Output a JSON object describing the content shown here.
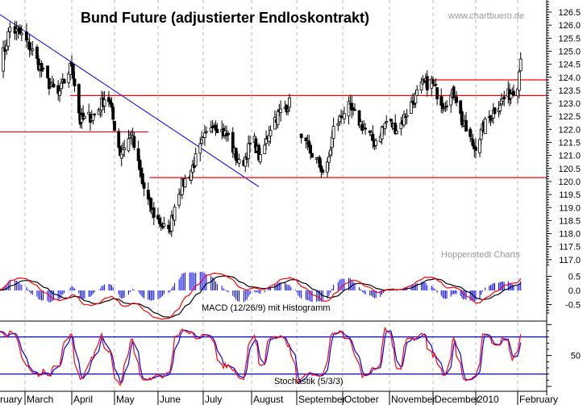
{
  "chart_data": {
    "type": "candlestick",
    "title": "Bund Future (adjustierter Endloskontrakt)",
    "watermark": "www.chartbuero.de",
    "source": "Hoppenstedt Charts",
    "price_axis": {
      "ylim": [
        116.8,
        126.8
      ],
      "ticks": [
        "126.5",
        "126.0",
        "125.5",
        "125.0",
        "124.5",
        "124.0",
        "123.5",
        "123.0",
        "122.5",
        "122.0",
        "121.5",
        "121.0",
        "120.5",
        "120.0",
        "119.5",
        "119.0",
        "118.5",
        "118.0",
        "117.5",
        "117.0"
      ]
    },
    "month_labels": [
      "ruary",
      "March",
      "April",
      "May",
      "June",
      "July",
      "August",
      "September",
      "October",
      "November",
      "December",
      "2010",
      "February"
    ],
    "grid": "vertical dashed at month starts",
    "closes": [
      [
        "2009-02-13",
        124.4
      ],
      [
        "2009-02-17",
        125.1
      ],
      [
        "2009-02-20",
        125.9
      ],
      [
        "2009-02-27",
        125.6
      ],
      [
        "2009-03-05",
        125.1
      ],
      [
        "2009-03-15",
        123.9
      ],
      [
        "2009-03-23",
        123.3
      ],
      [
        "2009-04-01",
        124.5
      ],
      [
        "2009-04-07",
        122.3
      ],
      [
        "2009-04-18",
        122.6
      ],
      [
        "2009-04-26",
        123.4
      ],
      [
        "2009-05-05",
        121.1
      ],
      [
        "2009-05-13",
        121.8
      ],
      [
        "2009-05-21",
        119.9
      ],
      [
        "2009-05-27",
        118.9
      ],
      [
        "2009-06-08",
        118.0
      ],
      [
        "2009-06-14",
        119.6
      ],
      [
        "2009-06-22",
        120.3
      ],
      [
        "2009-06-30",
        121.4
      ],
      [
        "2009-07-07",
        122.3
      ],
      [
        "2009-07-17",
        121.7
      ],
      [
        "2009-07-25",
        120.5
      ],
      [
        "2009-08-02",
        121.7
      ],
      [
        "2009-08-07",
        120.8
      ],
      [
        "2009-08-15",
        122.3
      ],
      [
        "2009-08-23",
        122.8
      ],
      [
        "2009-08-27",
        123.0
      ],
      [
        "2009-09-04",
        121.5
      ],
      [
        "2009-09-12",
        121.0
      ],
      [
        "2009-09-20",
        120.2
      ],
      [
        "2009-09-25",
        122.0
      ],
      [
        "2009-10-04",
        122.9
      ],
      [
        "2009-10-12",
        122.3
      ],
      [
        "2009-10-22",
        121.5
      ],
      [
        "2009-10-30",
        122.3
      ],
      [
        "2009-11-07",
        122.0
      ],
      [
        "2009-11-15",
        122.9
      ],
      [
        "2009-11-24",
        123.7
      ],
      [
        "2009-11-30",
        123.8
      ],
      [
        "2009-12-08",
        123.0
      ],
      [
        "2009-12-17",
        123.4
      ],
      [
        "2009-12-22",
        122.3
      ],
      [
        "2009-12-31",
        121.3
      ],
      [
        "2010-01-09",
        122.3
      ],
      [
        "2010-01-18",
        123.0
      ],
      [
        "2010-01-27",
        123.4
      ],
      [
        "2010-02-01",
        123.8
      ],
      [
        "2010-02-03",
        124.7
      ]
    ],
    "data_gap": [
      "2009-08-28",
      "2009-09-03"
    ],
    "trendline": {
      "from": [
        "2009-02-13",
        126.45
      ],
      "to": [
        "2009-08-06",
        119.8
      ],
      "color": "#0000ff"
    },
    "horizontal_lines": [
      {
        "price": 123.9,
        "from": "2009-11-26",
        "color": "#ff0000"
      },
      {
        "price": 123.3,
        "from": "2009-03-31",
        "color": "#ff0000"
      },
      {
        "price": 121.9,
        "from": "2009-02-13",
        "to": "2009-05-25",
        "color": "#ff0000"
      },
      {
        "price": 120.15,
        "from": "2009-05-26",
        "color": "#ff0000"
      }
    ],
    "macd": {
      "label": "MACD (12/26/9) mit Histogramm",
      "params": [
        12,
        26,
        9
      ],
      "ticks": [
        "0.5",
        "0.0",
        "-0.5"
      ],
      "macd_color": "#ff0000",
      "signal_color": "#000000",
      "histogram_color": "#0000ff"
    },
    "stochastic": {
      "label": "Stochastik (5/3/3)",
      "params": [
        5,
        3,
        3
      ],
      "ticks": [
        "50"
      ],
      "levels": [
        80,
        20
      ],
      "k_color": "#ff0000",
      "d_color": "#0000ff",
      "level_color": "#0000ff"
    }
  }
}
